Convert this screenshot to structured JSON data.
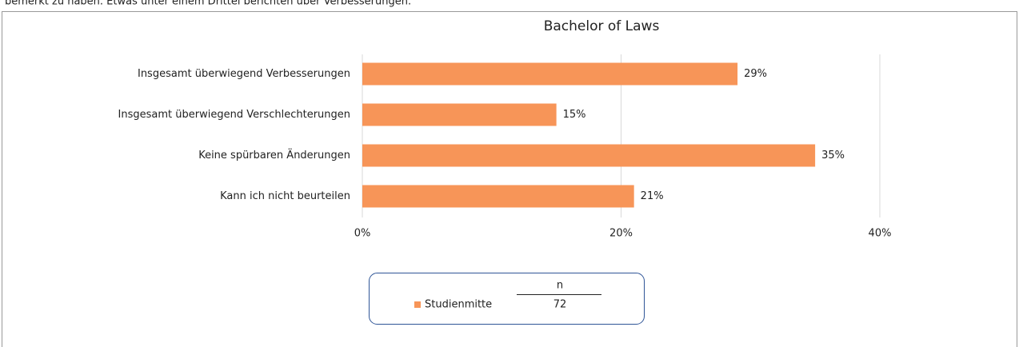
{
  "intro_text": "bemerkt zu haben. Etwas unter einem Drittel berichten über Verbesserungen.",
  "chart_data": {
    "type": "bar",
    "orientation": "horizontal",
    "title": "Bachelor of Laws",
    "categories": [
      "Insgesamt überwiegend Verbesserungen",
      "Insgesamt überwiegend Verschlechterungen",
      "Keine spürbaren Änderungen",
      "Kann ich nicht beurteilen"
    ],
    "series": [
      {
        "name": "Studienmitte",
        "color": "#f79558",
        "values": [
          29,
          15,
          35,
          21
        ],
        "value_labels": [
          "29%",
          "15%",
          "35%",
          "21%"
        ],
        "n": 72
      }
    ],
    "n_label": "n",
    "xlim": [
      0,
      40
    ],
    "xticks": [
      {
        "value": 0,
        "label": "0%"
      },
      {
        "value": 20,
        "label": "20%"
      },
      {
        "value": 40,
        "label": "40%"
      }
    ],
    "grid": true
  }
}
